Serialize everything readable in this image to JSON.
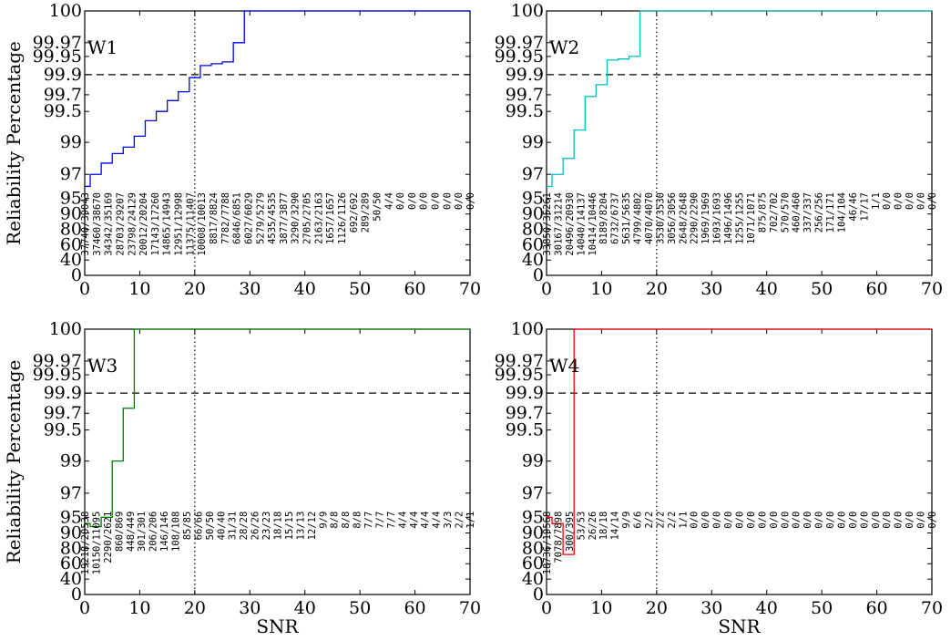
{
  "figure": {
    "ylabel": "Reliability Percentage",
    "xlabel": "SNR",
    "x_ticks": [
      0,
      10,
      20,
      30,
      40,
      50,
      60,
      70
    ],
    "y_ticks": [
      "0",
      "40",
      "60",
      "80",
      "90",
      "95",
      "97",
      "99",
      "99.5",
      "99.7",
      "99.9",
      "99.95",
      "99.97",
      "100"
    ],
    "reference_lines": {
      "dashed_y": 99.9,
      "dotted_x": 20
    }
  },
  "chart_data": [
    {
      "type": "line",
      "label": "W1",
      "color": "#0000ff",
      "xlim": [
        0,
        70
      ],
      "ylim": [
        0,
        100
      ],
      "y_scale": "non-linear (reliability ticks)",
      "x": [
        0,
        1,
        2,
        3,
        5,
        7,
        9,
        11,
        13,
        15,
        17,
        19,
        21,
        23,
        25,
        27,
        29,
        70
      ],
      "values": [
        96.0,
        97.0,
        97.0,
        97.7,
        98.3,
        98.7,
        99.1,
        99.35,
        99.5,
        99.63,
        99.73,
        99.87,
        99.925,
        99.93,
        99.935,
        99.97,
        100.0,
        100.0
      ],
      "counts": [
        "37740/39043",
        "37460/38670",
        "34342/35169",
        "28703/29207",
        "23798/24129",
        "20012/20204",
        "17143/17260",
        "14865/14943",
        "12951/12998",
        "11375/11407",
        "10008/10013",
        "8817/8824",
        "7782/7788",
        "6846/6851",
        "6027/6029",
        "5279/5279",
        "4535/4535",
        "3877/3877",
        "3290/3290",
        "2705/2705",
        "2163/2163",
        "1657/1657",
        "1126/1126",
        "692/692",
        "289/289",
        "50/50",
        "4/4",
        "0/0",
        "0/0",
        "0/0",
        "0/0",
        "0/0",
        "0/0",
        "0/0"
      ]
    },
    {
      "type": "line",
      "label": "W2",
      "color": "#00bfbf",
      "xlim": [
        0,
        70
      ],
      "ylim": [
        0,
        100
      ],
      "x": [
        0,
        1,
        3,
        5,
        7,
        9,
        11,
        13,
        15,
        17,
        70
      ],
      "values": [
        96.0,
        97.0,
        98.0,
        99.2,
        99.68,
        99.8,
        99.94,
        99.943,
        99.95,
        100.0,
        100.0
      ],
      "counts": [
        "33850/35261",
        "30167/31214",
        "20496/20930",
        "14040/14137",
        "10414/10446",
        "8189/8204",
        "6732/6737",
        "5631/5635",
        "4799/4802",
        "4070/4070",
        "3530/3530",
        "3056/3056",
        "2648/2648",
        "2290/2290",
        "1969/1969",
        "1693/1693",
        "1496/1496",
        "1255/1255",
        "1071/1071",
        "875/875",
        "702/702",
        "570/570",
        "460/460",
        "337/337",
        "256/256",
        "171/171",
        "104/104",
        "46/46",
        "17/17",
        "1/1",
        "0/0",
        "0/0",
        "0/0",
        "0/0",
        "0/0"
      ]
    },
    {
      "type": "line",
      "label": "W3",
      "color": "#008000",
      "xlim": [
        0,
        70
      ],
      "ylim": [
        0,
        100
      ],
      "x": [
        0,
        1,
        3,
        5,
        7,
        9,
        70
      ],
      "values": [
        93.0,
        92.0,
        95.0,
        99.0,
        99.75,
        100.0,
        100.0
      ],
      "counts": [
        "19218/20538",
        "10150/11095",
        "2290/2621",
        "860/869",
        "448/449",
        "301/301",
        "206/206",
        "146/146",
        "108/108",
        "85/85",
        "66/66",
        "50/50",
        "40/40",
        "31/31",
        "28/28",
        "26/26",
        "23/23",
        "18/18",
        "15/15",
        "13/13",
        "12/12",
        "9/9",
        "8/8",
        "8/8",
        "8/8",
        "7/7",
        "7/7",
        "7/7",
        "4/4",
        "4/4",
        "4/4",
        "4/4",
        "3/3",
        "2/2",
        "1/1"
      ]
    },
    {
      "type": "line",
      "label": "W4",
      "color": "#ff0000",
      "xlim": [
        0,
        70
      ],
      "ylim": [
        0,
        100
      ],
      "x": [
        0,
        1,
        3,
        5,
        70
      ],
      "values": [
        95.0,
        93.0,
        72.0,
        100.0,
        100.0
      ],
      "counts": [
        "18736/19568",
        "7078/7898",
        "300/395",
        "53/53",
        "26/26",
        "18/18",
        "14/14",
        "9/9",
        "6/6",
        "2/2",
        "2/2",
        "2/2",
        "1/1",
        "0/0",
        "0/0",
        "0/0",
        "0/0",
        "0/0",
        "0/0",
        "0/0",
        "0/0",
        "0/0",
        "0/0",
        "0/0",
        "0/0",
        "0/0",
        "0/0",
        "0/0",
        "0/0",
        "0/0",
        "0/0",
        "0/0",
        "0/0",
        "0/0",
        "0/0"
      ]
    }
  ]
}
